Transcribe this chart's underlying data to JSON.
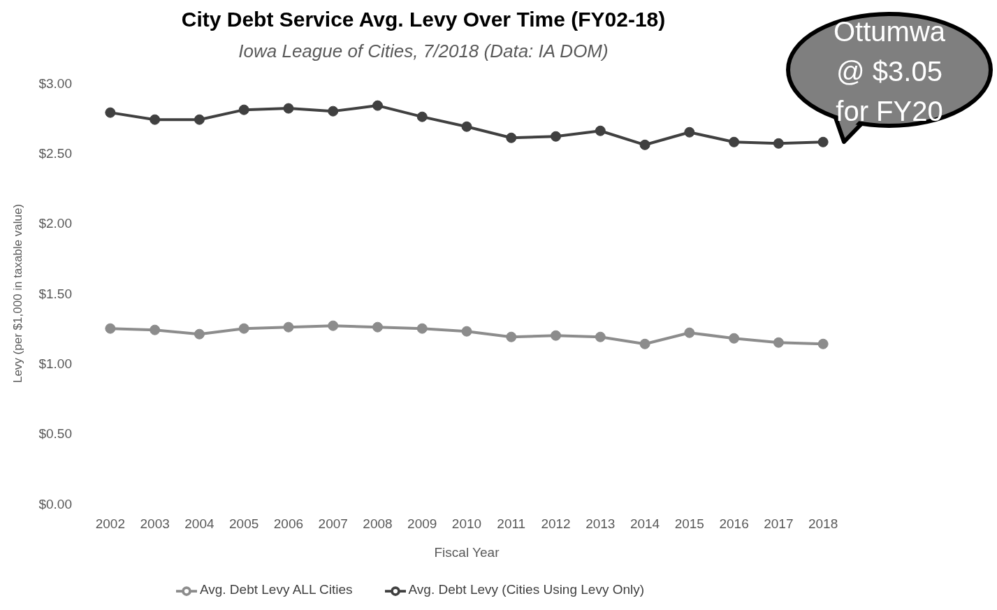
{
  "chart_data": {
    "type": "line",
    "title": "City Debt Service Avg. Levy Over Time (FY02-18)",
    "subtitle": "Iowa League of Cities, 7/2018 (Data: IA DOM)",
    "xlabel": "Fiscal Year",
    "ylabel": "Levy (per $1,000 in taxable value)",
    "categories": [
      "2002",
      "2003",
      "2004",
      "2005",
      "2006",
      "2007",
      "2008",
      "2009",
      "2010",
      "2011",
      "2012",
      "2013",
      "2014",
      "2015",
      "2016",
      "2017",
      "2018"
    ],
    "series": [
      {
        "name": "Avg. Debt Levy ALL Cities",
        "color": "#8c8c8c",
        "values": [
          1.25,
          1.24,
          1.21,
          1.25,
          1.26,
          1.27,
          1.26,
          1.25,
          1.23,
          1.19,
          1.2,
          1.19,
          1.14,
          1.22,
          1.18,
          1.15,
          1.14
        ]
      },
      {
        "name": "Avg. Debt Levy (Cities Using Levy Only)",
        "color": "#404040",
        "values": [
          2.79,
          2.74,
          2.74,
          2.81,
          2.82,
          2.8,
          2.84,
          2.76,
          2.69,
          2.61,
          2.62,
          2.66,
          2.56,
          2.65,
          2.58,
          2.57,
          2.58
        ]
      }
    ],
    "ylim": [
      0,
      3
    ],
    "yticks": [
      {
        "value": 0,
        "label": "$0.00"
      },
      {
        "value": 0.5,
        "label": "$0.50"
      },
      {
        "value": 1,
        "label": "$1.00"
      },
      {
        "value": 1.5,
        "label": "$1.50"
      },
      {
        "value": 2,
        "label": "$2.00"
      },
      {
        "value": 2.5,
        "label": "$2.50"
      },
      {
        "value": 3,
        "label": "$3.00"
      }
    ],
    "grid": false,
    "legend": "bottom",
    "marker": "circle",
    "line_style": "solid",
    "annotations": [
      "Ottumwa @ $3.05 for FY20"
    ]
  }
}
